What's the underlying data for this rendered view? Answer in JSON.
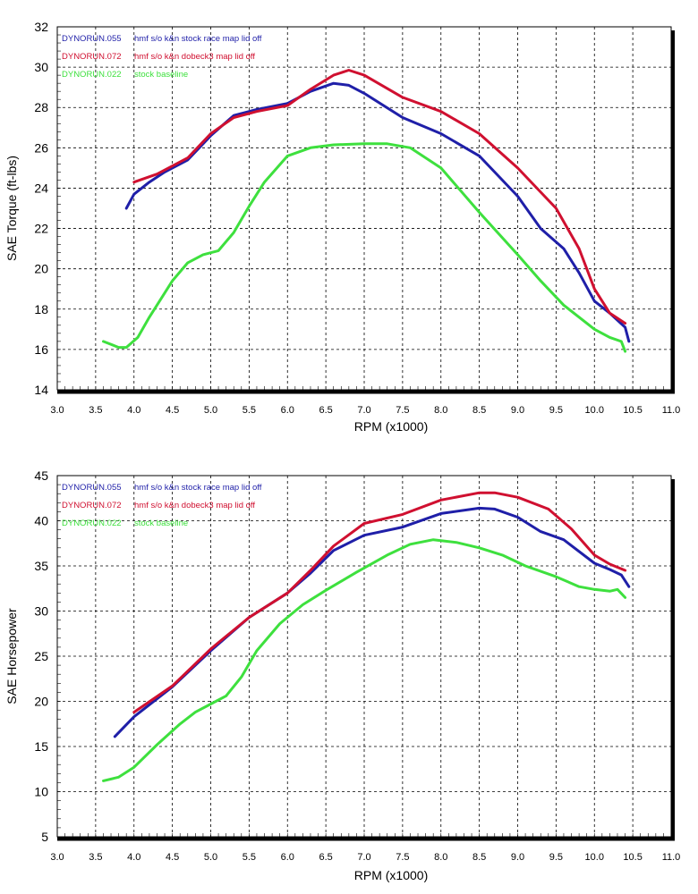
{
  "chart_data": [
    {
      "type": "line",
      "xlabel": "RPM (x1000)",
      "ylabel": "SAE Torque (ft-lbs)",
      "xlim": [
        3.0,
        11.0
      ],
      "ylim": [
        14,
        32
      ],
      "xticks": [
        "3.0",
        "3.5",
        "4.0",
        "4.5",
        "5.0",
        "5.5",
        "6.0",
        "6.5",
        "7.0",
        "7.5",
        "8.0",
        "8.5",
        "9.0",
        "9.5",
        "10.0",
        "10.5",
        "11.0"
      ],
      "yticks": [
        "14",
        "16",
        "18",
        "20",
        "22",
        "24",
        "26",
        "28",
        "30",
        "32"
      ],
      "grid": true,
      "legend_position": "top-left",
      "series": [
        {
          "name": "DYNORUN.055   hmf s/o  k&n stock race map lid off",
          "legend_name": "DYNORUN.055",
          "legend_desc": "hmf s/o  k&n stock race map lid off",
          "color": "#1f1fa8",
          "x": [
            3.9,
            4.0,
            4.2,
            4.4,
            4.7,
            5.0,
            5.3,
            5.6,
            6.0,
            6.3,
            6.6,
            6.8,
            7.0,
            7.5,
            8.0,
            8.5,
            9.0,
            9.3,
            9.6,
            9.8,
            10.0,
            10.2,
            10.4,
            10.45
          ],
          "y": [
            23.0,
            23.7,
            24.3,
            24.8,
            25.4,
            26.6,
            27.6,
            27.9,
            28.2,
            28.8,
            29.2,
            29.1,
            28.7,
            27.5,
            26.7,
            25.6,
            23.6,
            22.0,
            21.0,
            19.8,
            18.4,
            17.8,
            17.1,
            16.4
          ]
        },
        {
          "name": "DYNORUN.072   hmf s/o  k&n dobeck3 map lid off",
          "legend_name": "DYNORUN.072",
          "legend_desc": "hmf s/o  k&n dobeck3 map lid off",
          "color": "#d01030",
          "x": [
            4.0,
            4.3,
            4.7,
            5.0,
            5.3,
            5.6,
            6.0,
            6.3,
            6.6,
            6.8,
            7.0,
            7.5,
            8.0,
            8.5,
            9.0,
            9.5,
            9.8,
            10.0,
            10.2,
            10.4
          ],
          "y": [
            24.3,
            24.7,
            25.5,
            26.7,
            27.5,
            27.8,
            28.1,
            28.9,
            29.6,
            29.85,
            29.6,
            28.5,
            27.8,
            26.7,
            25.0,
            23.0,
            21.0,
            19.0,
            17.8,
            17.3
          ]
        },
        {
          "name": "DYNORUN.022   stock baseline",
          "legend_name": "DYNORUN.022",
          "legend_desc": "stock baseline",
          "color": "#3ee03e",
          "x": [
            3.6,
            3.8,
            3.9,
            4.05,
            4.2,
            4.5,
            4.7,
            4.9,
            5.1,
            5.3,
            5.5,
            5.7,
            6.0,
            6.3,
            6.6,
            7.0,
            7.3,
            7.6,
            8.0,
            8.5,
            9.0,
            9.3,
            9.6,
            10.0,
            10.2,
            10.35,
            10.4
          ],
          "y": [
            16.4,
            16.1,
            16.1,
            16.6,
            17.6,
            19.4,
            20.3,
            20.7,
            20.9,
            21.8,
            23.1,
            24.3,
            25.6,
            26.0,
            26.15,
            26.2,
            26.2,
            26.0,
            25.0,
            22.8,
            20.7,
            19.4,
            18.2,
            17.0,
            16.6,
            16.4,
            15.9
          ]
        }
      ]
    },
    {
      "type": "line",
      "xlabel": "RPM (x1000)",
      "ylabel": "SAE Horsepower",
      "xlim": [
        3.0,
        11.0
      ],
      "ylim": [
        5,
        45
      ],
      "xticks": [
        "3.0",
        "3.5",
        "4.0",
        "4.5",
        "5.0",
        "5.5",
        "6.0",
        "6.5",
        "7.0",
        "7.5",
        "8.0",
        "8.5",
        "9.0",
        "9.5",
        "10.0",
        "10.5",
        "11.0"
      ],
      "yticks": [
        "5",
        "10",
        "15",
        "20",
        "25",
        "30",
        "35",
        "40",
        "45"
      ],
      "grid": true,
      "legend_position": "top-left",
      "series": [
        {
          "name": "DYNORUN.055   hmf s/o  k&n stock race map lid off",
          "legend_name": "DYNORUN.055",
          "legend_desc": "hmf s/o  k&n stock race map lid off",
          "color": "#1f1fa8",
          "x": [
            3.75,
            4.0,
            4.5,
            5.0,
            5.5,
            6.0,
            6.3,
            6.6,
            7.0,
            7.5,
            8.0,
            8.5,
            8.7,
            9.0,
            9.3,
            9.6,
            10.0,
            10.2,
            10.35,
            10.45
          ],
          "y": [
            16.1,
            18.3,
            21.6,
            25.6,
            29.3,
            32.0,
            34.2,
            36.7,
            38.4,
            39.3,
            40.8,
            41.4,
            41.3,
            40.4,
            38.8,
            37.9,
            35.3,
            34.6,
            34.0,
            32.7
          ]
        },
        {
          "name": "DYNORUN.072   hmf s/o  k&n dobeck3 map lid off",
          "legend_name": "DYNORUN.072",
          "legend_desc": "hmf s/o  k&n dobeck3 map lid off",
          "color": "#d01030",
          "x": [
            4.0,
            4.5,
            5.0,
            5.5,
            6.0,
            6.3,
            6.6,
            7.0,
            7.5,
            8.0,
            8.5,
            8.7,
            9.0,
            9.4,
            9.7,
            10.0,
            10.2,
            10.4
          ],
          "y": [
            18.8,
            21.7,
            25.8,
            29.3,
            32.0,
            34.5,
            37.2,
            39.7,
            40.7,
            42.3,
            43.1,
            43.1,
            42.6,
            41.3,
            39.1,
            36.2,
            35.2,
            34.5
          ]
        },
        {
          "name": "DYNORUN.022   stock baseline",
          "legend_name": "DYNORUN.022",
          "legend_desc": "stock baseline",
          "color": "#3ee03e",
          "x": [
            3.6,
            3.8,
            4.0,
            4.3,
            4.6,
            4.8,
            5.0,
            5.2,
            5.4,
            5.6,
            5.9,
            6.2,
            6.5,
            6.9,
            7.3,
            7.6,
            7.9,
            8.2,
            8.5,
            8.8,
            9.1,
            9.5,
            9.8,
            10.0,
            10.2,
            10.3,
            10.4
          ],
          "y": [
            11.2,
            11.6,
            12.7,
            15.2,
            17.5,
            18.8,
            19.7,
            20.6,
            22.7,
            25.6,
            28.6,
            30.7,
            32.3,
            34.3,
            36.2,
            37.4,
            37.9,
            37.6,
            37.0,
            36.2,
            35.0,
            33.8,
            32.7,
            32.4,
            32.2,
            32.4,
            31.5
          ]
        }
      ]
    }
  ]
}
